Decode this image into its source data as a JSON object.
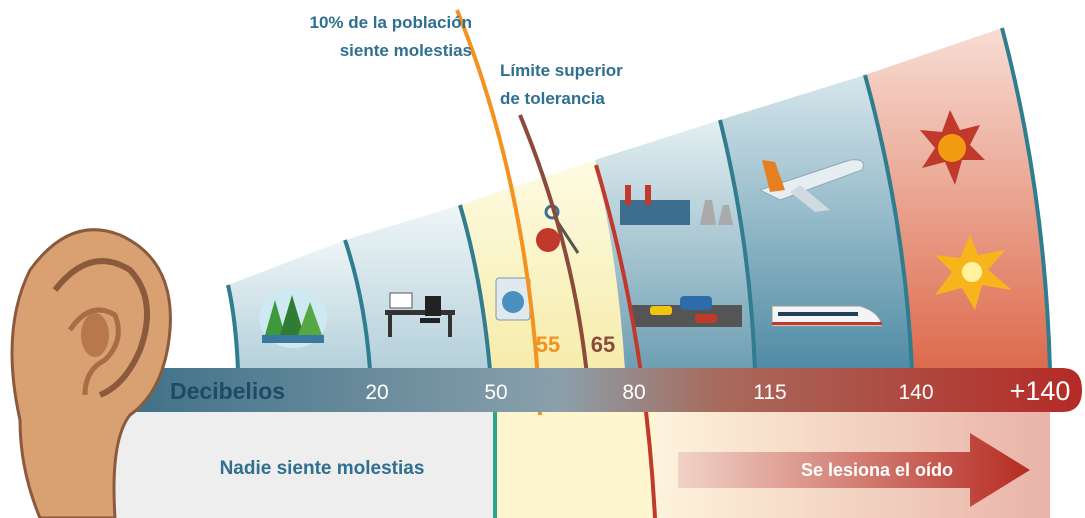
{
  "annotations": {
    "population": [
      "10% de la población",
      "siente molestias"
    ],
    "tolerance": [
      "Límite superior",
      "de tolerancia"
    ],
    "markers": [
      "55",
      "65"
    ]
  },
  "scale": {
    "label": "Decibelios",
    "ticks": [
      "20",
      "50",
      "80",
      "115",
      "140",
      "+140"
    ]
  },
  "bottom": {
    "safe": "Nadie siente molestias",
    "harm": "Se lesiona el oído"
  }
}
